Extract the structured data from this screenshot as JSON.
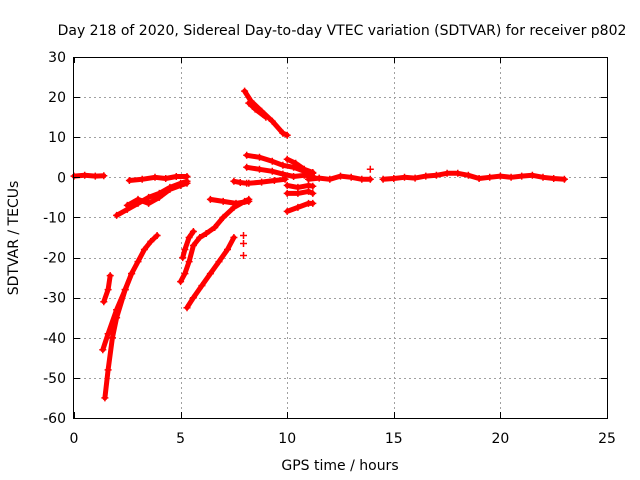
{
  "chart_data": {
    "type": "scatter",
    "title": "Day 218 of 2020, Sidereal Day-to-day VTEC variation (SDTVAR) for receiver p802",
    "xlabel": "GPS time / hours",
    "ylabel": "SDTVAR / TECUs",
    "xlim": [
      0,
      25
    ],
    "ylim": [
      -60,
      30
    ],
    "xticks": [
      0,
      5,
      10,
      15,
      20,
      25
    ],
    "yticks": [
      -60,
      -50,
      -40,
      -30,
      -20,
      -10,
      0,
      10,
      20,
      30
    ],
    "grid": true,
    "marker": "+",
    "color": "#ff0000",
    "tracks": [
      {
        "name": "track-1",
        "points": [
          [
            0.0,
            0.3
          ],
          [
            0.5,
            0.5
          ],
          [
            1.0,
            0.3
          ],
          [
            1.4,
            0.4
          ]
        ]
      },
      {
        "name": "track-2",
        "points": [
          [
            1.4,
            -31
          ],
          [
            1.6,
            -28
          ],
          [
            1.7,
            -24.5
          ]
        ]
      },
      {
        "name": "track-3",
        "points": [
          [
            1.35,
            -43
          ],
          [
            1.6,
            -39
          ],
          [
            2.0,
            -33
          ],
          [
            2.4,
            -28
          ],
          [
            2.7,
            -24
          ],
          [
            3.0,
            -21
          ],
          [
            3.3,
            -18
          ],
          [
            3.6,
            -16
          ],
          [
            3.9,
            -14.5
          ]
        ]
      },
      {
        "name": "track-4",
        "points": [
          [
            1.45,
            -55
          ],
          [
            1.6,
            -48
          ],
          [
            1.8,
            -40
          ],
          [
            2.0,
            -35
          ],
          [
            2.4,
            -28
          ],
          [
            2.7,
            -24
          ]
        ]
      },
      {
        "name": "track-5",
        "points": [
          [
            2.0,
            -9.5
          ],
          [
            2.5,
            -8
          ],
          [
            3.0,
            -6.5
          ],
          [
            3.5,
            -5
          ],
          [
            4.0,
            -4
          ],
          [
            4.5,
            -2.5
          ],
          [
            5.0,
            -1.5
          ],
          [
            5.3,
            -1
          ]
        ]
      },
      {
        "name": "track-6",
        "points": [
          [
            2.5,
            -7
          ],
          [
            3.0,
            -5.5
          ],
          [
            3.5,
            -6.5
          ],
          [
            4.0,
            -5
          ],
          [
            4.5,
            -3
          ],
          [
            5.0,
            -2
          ],
          [
            5.3,
            -1.5
          ]
        ]
      },
      {
        "name": "track-7",
        "points": [
          [
            2.6,
            -0.8
          ],
          [
            3.2,
            -0.5
          ],
          [
            3.8,
            0
          ],
          [
            4.3,
            -0.3
          ],
          [
            4.8,
            0.2
          ],
          [
            5.3,
            0.2
          ]
        ]
      },
      {
        "name": "track-8",
        "points": [
          [
            5.0,
            -26
          ],
          [
            5.2,
            -24
          ],
          [
            5.4,
            -21
          ],
          [
            5.6,
            -17
          ],
          [
            5.9,
            -15
          ],
          [
            6.2,
            -14
          ],
          [
            6.6,
            -12.5
          ],
          [
            7.0,
            -10
          ],
          [
            7.5,
            -7.5
          ],
          [
            8.0,
            -6
          ],
          [
            8.2,
            -5.5
          ]
        ]
      },
      {
        "name": "track-9",
        "points": [
          [
            5.1,
            -20
          ],
          [
            5.2,
            -18
          ],
          [
            5.4,
            -15
          ],
          [
            5.6,
            -13.5
          ]
        ]
      },
      {
        "name": "track-10",
        "points": [
          [
            5.3,
            -32.5
          ],
          [
            5.6,
            -30
          ],
          [
            6.0,
            -27
          ],
          [
            6.4,
            -24
          ],
          [
            6.8,
            -21
          ],
          [
            7.2,
            -18
          ],
          [
            7.5,
            -15
          ]
        ]
      },
      {
        "name": "track-11",
        "points": [
          [
            6.4,
            -5.5
          ],
          [
            7.0,
            -6
          ],
          [
            7.6,
            -6.5
          ],
          [
            8.2,
            -6
          ]
        ]
      },
      {
        "name": "track-12",
        "points": [
          [
            7.5,
            -1
          ],
          [
            7.8,
            -1.3
          ],
          [
            8.1,
            -1.5
          ]
        ]
      },
      {
        "name": "track-13",
        "points": [
          [
            7.95,
            -14.5
          ]
        ]
      },
      {
        "name": "track-14",
        "points": [
          [
            7.95,
            -16.5
          ]
        ]
      },
      {
        "name": "track-15",
        "points": [
          [
            7.95,
            -19.5
          ]
        ]
      },
      {
        "name": "track-16",
        "points": [
          [
            8.0,
            21.5
          ],
          [
            8.3,
            19
          ],
          [
            8.8,
            16.5
          ],
          [
            9.3,
            14
          ],
          [
            9.8,
            11
          ],
          [
            10.0,
            10.5
          ]
        ]
      },
      {
        "name": "track-17",
        "points": [
          [
            8.2,
            18.5
          ],
          [
            8.5,
            17
          ],
          [
            9.0,
            15
          ]
        ]
      },
      {
        "name": "track-18",
        "points": [
          [
            8.1,
            5.5
          ],
          [
            8.7,
            5
          ],
          [
            9.3,
            4
          ],
          [
            9.8,
            3
          ],
          [
            10.3,
            2.5
          ],
          [
            10.8,
            1.5
          ],
          [
            11.2,
            1
          ]
        ]
      },
      {
        "name": "track-19",
        "points": [
          [
            8.1,
            2.5
          ],
          [
            8.7,
            2
          ],
          [
            9.3,
            1.5
          ],
          [
            9.8,
            0.8
          ],
          [
            10.3,
            0.2
          ],
          [
            10.8,
            0.5
          ],
          [
            11.2,
            0.3
          ]
        ]
      },
      {
        "name": "track-20",
        "points": [
          [
            8.2,
            -1.5
          ],
          [
            8.8,
            -1.2
          ],
          [
            9.4,
            -0.8
          ],
          [
            9.9,
            -0.5
          ]
        ]
      },
      {
        "name": "track-21",
        "points": [
          [
            10.0,
            4.5
          ],
          [
            10.4,
            3.5
          ],
          [
            10.8,
            2
          ],
          [
            11.2,
            1.2
          ]
        ]
      },
      {
        "name": "track-22",
        "points": [
          [
            10.0,
            -2
          ],
          [
            10.5,
            -2.5
          ],
          [
            11.0,
            -2
          ],
          [
            11.2,
            -2.2
          ]
        ]
      },
      {
        "name": "track-23",
        "points": [
          [
            10.0,
            -4
          ],
          [
            10.5,
            -4
          ],
          [
            11.0,
            -3.5
          ],
          [
            11.2,
            -4
          ]
        ]
      },
      {
        "name": "track-24",
        "points": [
          [
            10.0,
            -8.5
          ],
          [
            10.5,
            -7.5
          ],
          [
            11.0,
            -6.5
          ],
          [
            11.2,
            -6.5
          ]
        ]
      },
      {
        "name": "track-25",
        "points": [
          [
            11.0,
            -0.5
          ],
          [
            11.5,
            -0.2
          ],
          [
            12.0,
            -0.5
          ],
          [
            12.5,
            0.3
          ],
          [
            13.0,
            0
          ],
          [
            13.5,
            -0.5
          ],
          [
            13.9,
            -0.5
          ]
        ]
      },
      {
        "name": "track-26",
        "points": [
          [
            13.9,
            2
          ]
        ]
      },
      {
        "name": "track-27",
        "points": [
          [
            14.5,
            -0.5
          ],
          [
            15.0,
            -0.3
          ],
          [
            15.5,
            0
          ],
          [
            16.0,
            -0.2
          ],
          [
            16.5,
            0.3
          ],
          [
            17.0,
            0.5
          ],
          [
            17.5,
            1
          ],
          [
            18.0,
            1
          ],
          [
            18.5,
            0.5
          ],
          [
            19.0,
            -0.3
          ],
          [
            19.5,
            0
          ],
          [
            20.0,
            0.3
          ],
          [
            20.5,
            0
          ],
          [
            21.0,
            0.3
          ],
          [
            21.5,
            0.5
          ],
          [
            22.0,
            0
          ],
          [
            22.5,
            -0.3
          ],
          [
            23.0,
            -0.5
          ]
        ]
      }
    ]
  }
}
